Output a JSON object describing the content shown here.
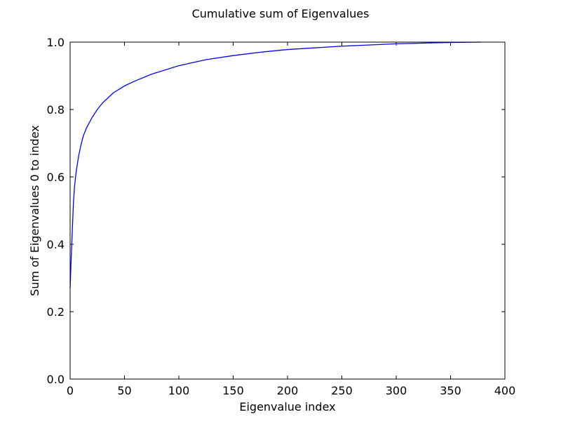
{
  "chart_data": {
    "type": "line",
    "title": "Cumulative sum of Eigenvalues",
    "xlabel": "Eigenvalue index",
    "ylabel": "Sum of Eigenvalues 0 to index",
    "xlim": [
      0,
      400
    ],
    "ylim": [
      0.0,
      1.0
    ],
    "xticks": [
      0,
      50,
      100,
      150,
      200,
      250,
      300,
      350,
      400
    ],
    "xtick_labels": [
      "0",
      "50",
      "100",
      "150",
      "200",
      "250",
      "300",
      "350",
      "400"
    ],
    "yticks": [
      0.0,
      0.2,
      0.4,
      0.6,
      0.8,
      1.0
    ],
    "ytick_labels": [
      "0.0",
      "0.2",
      "0.4",
      "0.6",
      "0.8",
      "1.0"
    ],
    "grid": false,
    "legend": "none",
    "series": [
      {
        "color": "#0000ff",
        "x": [
          0,
          1,
          2,
          3,
          4,
          5,
          6,
          8,
          10,
          12,
          15,
          20,
          25,
          30,
          40,
          50,
          60,
          75,
          100,
          125,
          150,
          175,
          200,
          250,
          300,
          350,
          378
        ],
        "y": [
          0.27,
          0.36,
          0.44,
          0.52,
          0.57,
          0.6,
          0.625,
          0.665,
          0.695,
          0.72,
          0.745,
          0.775,
          0.8,
          0.82,
          0.85,
          0.87,
          0.885,
          0.905,
          0.93,
          0.948,
          0.96,
          0.97,
          0.978,
          0.988,
          0.995,
          0.999,
          1.0
        ]
      }
    ]
  }
}
